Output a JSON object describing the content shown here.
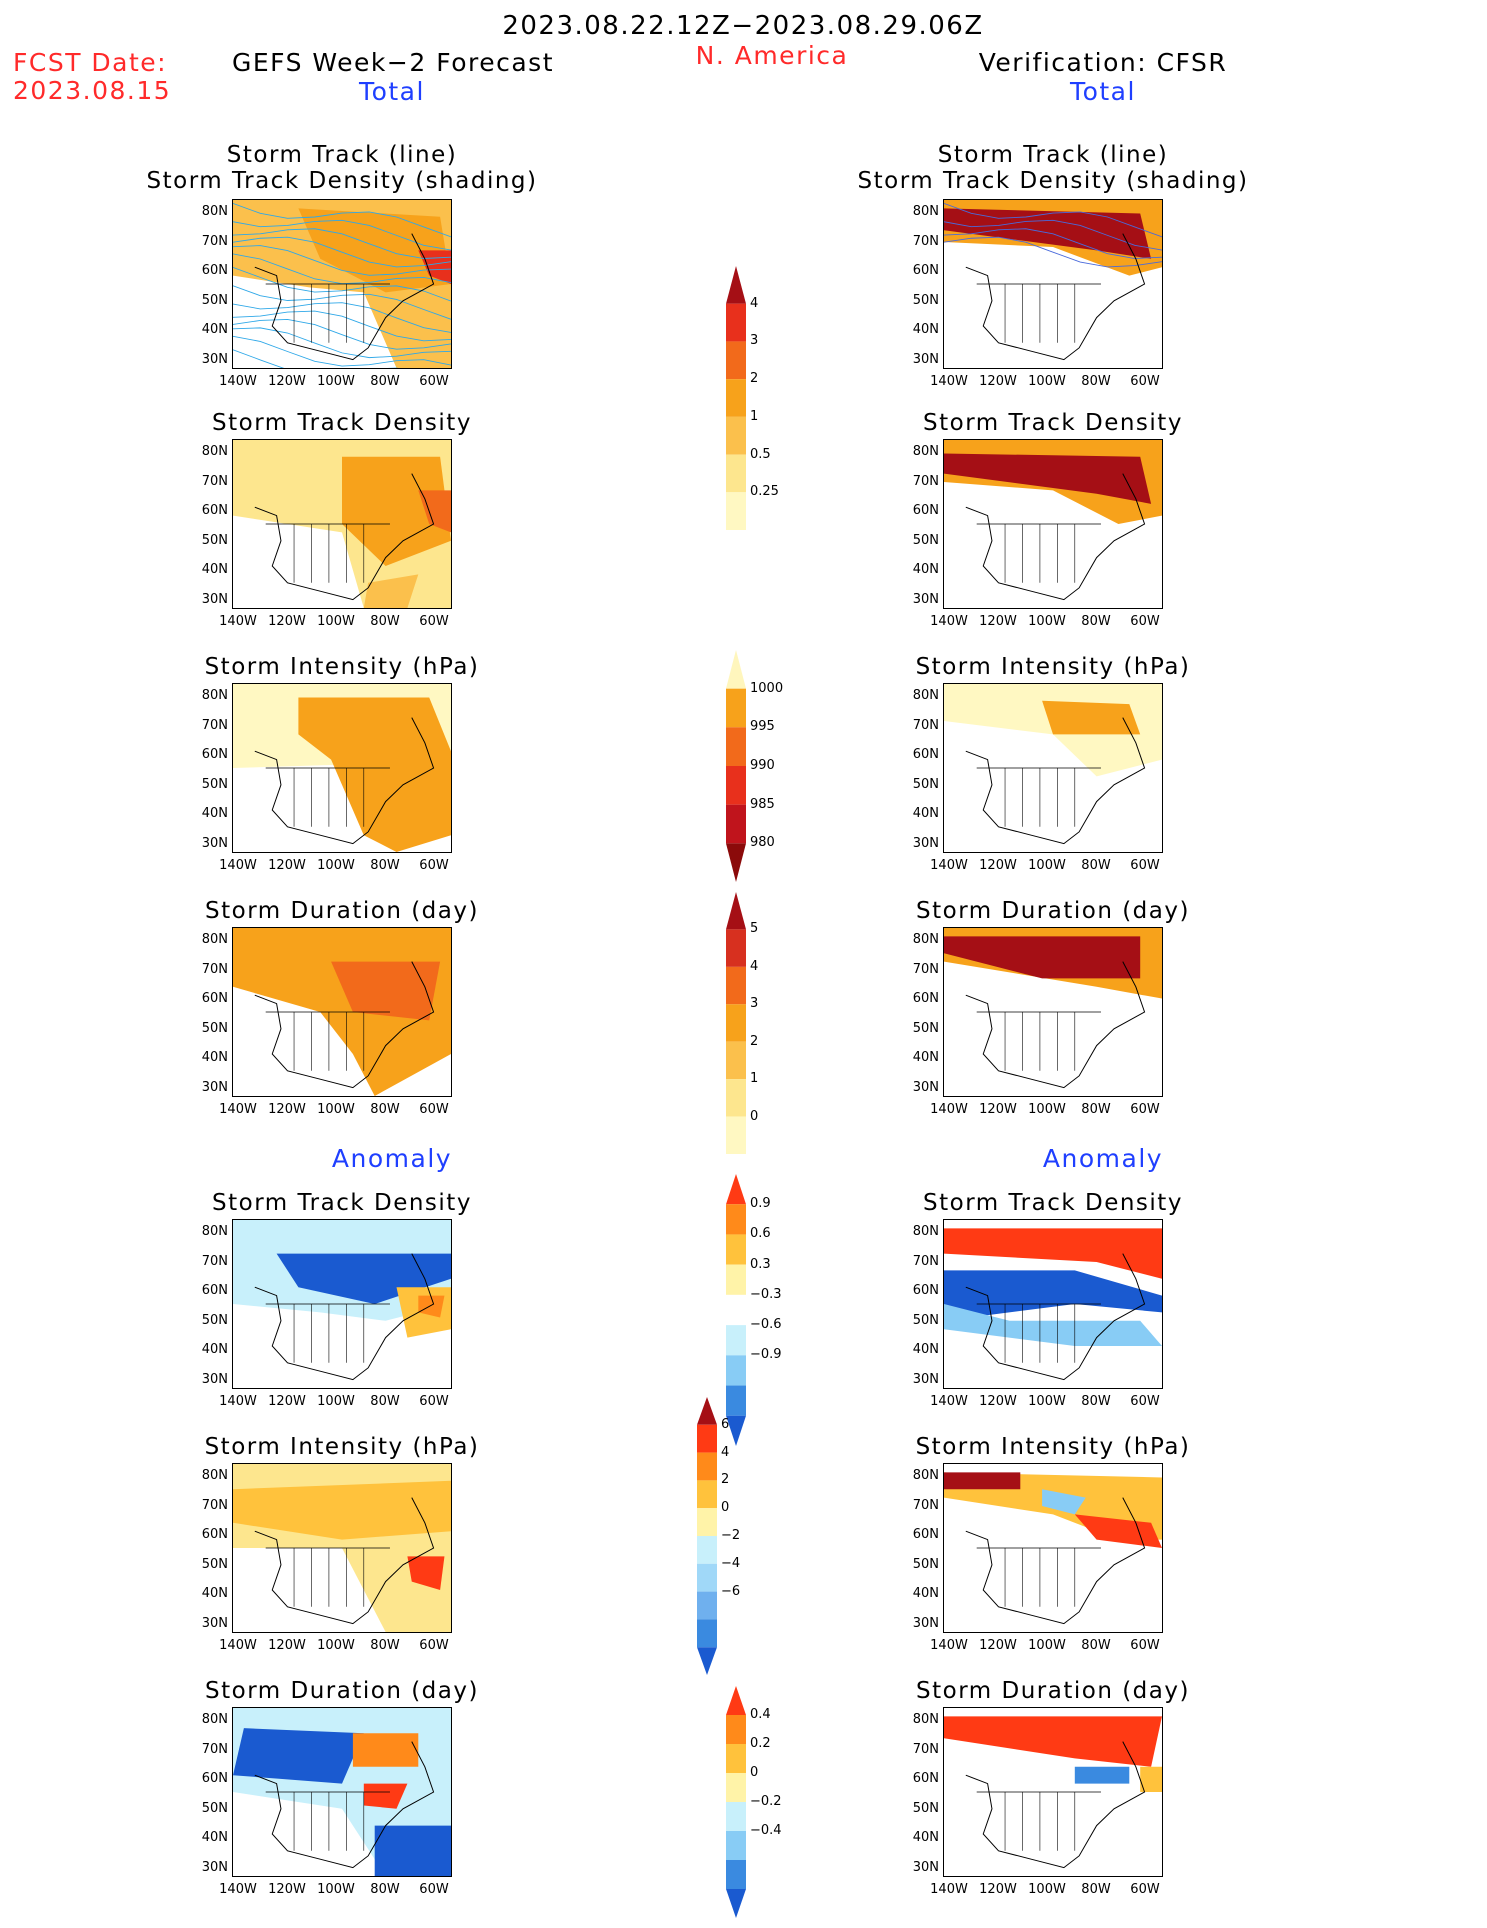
{
  "header": {
    "period": "2023.08.22.12Z−2023.08.29.06Z",
    "region": "N. America",
    "fcst_label": "FCST Date:",
    "fcst_date": "2023.08.15",
    "left_title": "GEFS Week−2 Forecast",
    "right_title": "Verification: CFSR",
    "left_total": "Total",
    "right_total": "Total",
    "left_anomaly": "Anomaly",
    "right_anomaly": "Anomaly"
  },
  "axes": {
    "lat_labels": [
      "80N",
      "70N",
      "60N",
      "50N",
      "40N",
      "30N"
    ],
    "lon_labels": [
      "140W",
      "120W",
      "100W",
      "80W",
      "60W"
    ]
  },
  "panels": [
    {
      "id": "fc-track",
      "title": [
        "Storm Track (line)",
        "Storm Track Density (shading)"
      ],
      "column": "forecast",
      "field": "track-density-total",
      "lines": true
    },
    {
      "id": "ob-track",
      "title": [
        "Storm Track (line)",
        "Storm Track Density (shading)"
      ],
      "column": "verification",
      "field": "track-density-total",
      "lines": true
    },
    {
      "id": "fc-density",
      "title": [
        "Storm Track Density"
      ],
      "column": "forecast",
      "field": "track-density-total"
    },
    {
      "id": "ob-density",
      "title": [
        "Storm Track Density"
      ],
      "column": "verification",
      "field": "track-density-total"
    },
    {
      "id": "fc-intensity",
      "title": [
        "Storm Intensity (hPa)"
      ],
      "column": "forecast",
      "field": "intensity-total"
    },
    {
      "id": "ob-intensity",
      "title": [
        "Storm Intensity (hPa)"
      ],
      "column": "verification",
      "field": "intensity-total"
    },
    {
      "id": "fc-duration",
      "title": [
        "Storm Duration (day)"
      ],
      "column": "forecast",
      "field": "duration-total"
    },
    {
      "id": "ob-duration",
      "title": [
        "Storm Duration (day)"
      ],
      "column": "verification",
      "field": "duration-total"
    },
    {
      "id": "fc-density-anom",
      "title": [
        "Storm Track Density"
      ],
      "column": "forecast",
      "field": "density-anomaly"
    },
    {
      "id": "ob-density-anom",
      "title": [
        "Storm Track Density"
      ],
      "column": "verification",
      "field": "density-anomaly"
    },
    {
      "id": "fc-intensity-anom",
      "title": [
        "Storm Intensity (hPa)"
      ],
      "column": "forecast",
      "field": "intensity-anomaly"
    },
    {
      "id": "ob-intensity-anom",
      "title": [
        "Storm Intensity (hPa)"
      ],
      "column": "verification",
      "field": "intensity-anomaly"
    },
    {
      "id": "fc-duration-anom",
      "title": [
        "Storm Duration (day)"
      ],
      "column": "forecast",
      "field": "duration-anomaly"
    },
    {
      "id": "ob-duration-anom",
      "title": [
        "Storm Duration (day)"
      ],
      "column": "verification",
      "field": "duration-anomaly"
    }
  ],
  "colorbars": [
    {
      "id": "cb-density",
      "labels": [
        "4",
        "3",
        "2",
        "1",
        "0.5",
        "0.25"
      ],
      "colors": [
        "#a50f15",
        "#e8301c",
        "#f26a1b",
        "#f7a21b",
        "#fbc04c",
        "#fde68e",
        "#fff8c2"
      ],
      "tail": "bottom"
    },
    {
      "id": "cb-intensity",
      "labels": [
        "1000",
        "995",
        "990",
        "985",
        "980"
      ],
      "colors": [
        "#fff6bd",
        "#f7a21b",
        "#f26a1b",
        "#e8301c",
        "#c0141c",
        "#8b0a0a"
      ],
      "tail": "top"
    },
    {
      "id": "cb-duration",
      "labels": [
        "5",
        "4",
        "3",
        "2",
        "1",
        "0"
      ],
      "colors": [
        "#a50f15",
        "#d7301f",
        "#f26a1b",
        "#f7a21b",
        "#fbc04c",
        "#fde68e",
        "#fff8c2"
      ],
      "tail": "bottom"
    },
    {
      "id": "cb-density-anom",
      "labels": [
        "0.9",
        "0.6",
        "0.3",
        "−0.3",
        "−0.6",
        "−0.9"
      ],
      "colors": [
        "#ff3a14",
        "#ff8a1a",
        "#ffc23c",
        "#fff3a8",
        "#ffffff",
        "#c8f0fb",
        "#88ccf5",
        "#3a8ae0",
        "#1a5ad0"
      ]
    },
    {
      "id": "cb-intensity-anom",
      "labels": [
        "6",
        "4",
        "2",
        "0",
        "−2",
        "−4",
        "−6"
      ],
      "colors": [
        "#a50f15",
        "#ff3a14",
        "#ff8a1a",
        "#ffc23c",
        "#fff3a8",
        "#c8f0fb",
        "#a0d8f8",
        "#6fb0ee",
        "#3a8ae0",
        "#1a5ad0"
      ]
    },
    {
      "id": "cb-duration-anom",
      "labels": [
        "0.4",
        "0.2",
        "0",
        "−0.2",
        "−0.4"
      ],
      "colors": [
        "#ff3a14",
        "#ff8a1a",
        "#ffc23c",
        "#fff3a8",
        "#c8f0fb",
        "#88ccf5",
        "#3a8ae0",
        "#1a5ad0"
      ]
    }
  ],
  "palette": {
    "title_red": "#ff2a2a",
    "title_blue": "#1f3fff",
    "track_line": "#2fa8e8"
  }
}
